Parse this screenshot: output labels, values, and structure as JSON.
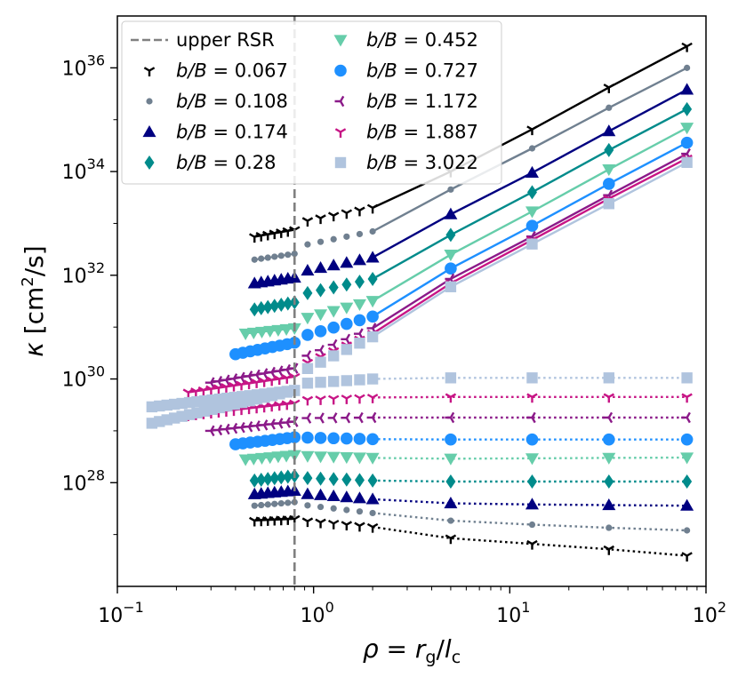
{
  "chart_data": {
    "type": "scatter",
    "title": "",
    "xscale": "log",
    "yscale": "log",
    "xlim": [
      0.1,
      100
    ],
    "ylim": [
      1e+26,
      1e+37
    ],
    "xlabel": "ρ = r_g/l_c",
    "ylabel": "κ [cm²/s]",
    "xticks": [
      {
        "value": 0.1,
        "base": "10",
        "exp": "−1"
      },
      {
        "value": 1,
        "base": "10",
        "exp": "0"
      },
      {
        "value": 10,
        "base": "10",
        "exp": "1"
      },
      {
        "value": 100,
        "base": "10",
        "exp": "2"
      }
    ],
    "yticks": [
      {
        "value": 1e+28,
        "base": "10",
        "exp": "28"
      },
      {
        "value": 1e+30,
        "base": "10",
        "exp": "30"
      },
      {
        "value": 1e+32,
        "base": "10",
        "exp": "32"
      },
      {
        "value": 1e+34,
        "base": "10",
        "exp": "34"
      },
      {
        "value": 1e+36,
        "base": "10",
        "exp": "36"
      }
    ],
    "legend_position": "top-left",
    "vline": {
      "x": 0.8,
      "label": "upper RSR",
      "color": "#808080"
    },
    "upper_x": [
      5,
      13,
      32,
      80
    ],
    "series": [
      {
        "name": "b/B = 0.067",
        "value": "0.067",
        "color": "#000000",
        "marker": "tri",
        "perp": [
          0.5,
          0.8,
          0.8,
          2.0,
          1.85e+27,
          2e+27,
          1.9e+27,
          1.4e+27,
          8.5e+26,
          6.6e+26,
          5.2e+26,
          3.9e+26
        ],
        "par": [
          0.5,
          0.8,
          0.8,
          2.0,
          5.5e+32,
          7.5e+32,
          1e+33,
          2e+33,
          1e+34,
          6.5e+34,
          4.2e+35,
          2.6e+36
        ]
      },
      {
        "name": "b/B = 0.108",
        "value": "0.108",
        "color": "#708090",
        "marker": "dot",
        "perp": [
          0.5,
          0.8,
          0.8,
          2.0,
          3.6e+27,
          4.2e+27,
          3.9e+27,
          2.6e+27,
          1.85e+27,
          1.55e+27,
          1.35e+27,
          1.2e+27
        ],
        "par": [
          0.5,
          0.8,
          0.8,
          2.0,
          2e+32,
          2.6e+32,
          3.5e+32,
          7e+32,
          4.5e+33,
          2.8e+34,
          1.7e+35,
          1e+36
        ]
      },
      {
        "name": "b/B = 0.174",
        "value": "0.174",
        "color": "#000080",
        "marker": "triup",
        "perp": [
          0.5,
          0.8,
          0.8,
          2.0,
          6e+27,
          7e+27,
          6.3e+27,
          4.8e+27,
          4e+27,
          3.8e+27,
          3.7e+27,
          3.6e+27
        ],
        "par": [
          0.5,
          0.8,
          0.8,
          2.0,
          7e+31,
          9e+31,
          1.1e+32,
          2.2e+32,
          1.5e+33,
          9.5e+33,
          6e+34,
          3.8e+35
        ]
      },
      {
        "name": "b/B = 0.28",
        "value": "0.28",
        "color": "#008B8B",
        "marker": "diamond",
        "perp": [
          0.5,
          0.8,
          0.8,
          2.0,
          1.1e+28,
          1.35e+28,
          1.25e+28,
          1.1e+28,
          1.05e+28,
          1.05e+28,
          1.05e+28,
          1.05e+28
        ],
        "par": [
          0.5,
          0.8,
          0.8,
          2.0,
          2.2e+31,
          3e+31,
          4e+31,
          8.5e+31,
          6e+32,
          4e+33,
          2.6e+34,
          1.6e+35
        ]
      },
      {
        "name": "b/B = 0.452",
        "value": "0.452",
        "color": "#66CDAA",
        "marker": "tridown",
        "perp": [
          0.45,
          0.8,
          0.8,
          2.0,
          2.8e+28,
          3.4e+28,
          3.3e+28,
          3e+28,
          2.9e+28,
          2.95e+28,
          3e+28,
          3.05e+28
        ],
        "par": [
          0.45,
          0.8,
          0.8,
          2.0,
          7.5e+30,
          9.5e+30,
          1.3e+31,
          3.2e+31,
          2.5e+32,
          1.7e+33,
          1.1e+34,
          7e+34
        ]
      },
      {
        "name": "b/B = 0.727",
        "value": "0.727",
        "color": "#1E90FF",
        "marker": "bigdot",
        "perp": [
          0.4,
          0.8,
          0.8,
          2.0,
          5.5e+28,
          7.5e+28,
          7.5e+28,
          6.9e+28,
          6.8e+28,
          6.8e+28,
          6.8e+28,
          6.8e+28
        ],
        "par": [
          0.4,
          0.8,
          0.8,
          2.0,
          3e+30,
          5e+30,
          6e+30,
          1.6e+31,
          1.35e+32,
          9e+32,
          5.8e+33,
          3.6e+34
        ]
      },
      {
        "name": "b/B = 1.172",
        "value": "1.172",
        "color": "#8B1A89",
        "marker": "trileft",
        "perp": [
          0.3,
          0.8,
          0.8,
          2.0,
          1e+29,
          1.5e+29,
          1.75e+29,
          1.8e+29,
          1.8e+29,
          1.8e+29,
          1.8e+29,
          1.8e+29
        ],
        "par": [
          0.3,
          0.8,
          0.8,
          2.0,
          8.5e+29,
          1.6e+30,
          2.2e+30,
          9.5e+30,
          8.5e+31,
          5.6e+32,
          3.5e+33,
          2.2e+34
        ]
      },
      {
        "name": "b/B = 1.887",
        "value": "1.887",
        "color": "#C71585",
        "marker": "tri",
        "perp": [
          0.23,
          0.8,
          0.8,
          2.0,
          2e+29,
          3.4e+29,
          3.9e+29,
          4.4e+29,
          4.5e+29,
          4.5e+29,
          4.5e+29,
          4.5e+29
        ],
        "par": [
          0.23,
          0.8,
          0.8,
          2.0,
          5.5e+29,
          1.1e+30,
          1.6e+30,
          7.5e+30,
          7e+31,
          4.8e+32,
          3e+33,
          1.8e+34
        ]
      },
      {
        "name": "b/B = 3.022",
        "value": "3.022",
        "color": "#B0C4DE",
        "marker": "square",
        "perp": [
          0.15,
          0.8,
          0.8,
          2.0,
          2.9e+29,
          6e+29,
          8e+29,
          1e+30,
          1.05e+30,
          1.05e+30,
          1.05e+30,
          1.05e+30
        ],
        "par": [
          0.15,
          0.8,
          0.8,
          2.0,
          1.4e+29,
          6e+29,
          1.2e+30,
          6.5e+30,
          6e+31,
          4e+32,
          2.4e+33,
          1.5e+34
        ]
      }
    ]
  }
}
